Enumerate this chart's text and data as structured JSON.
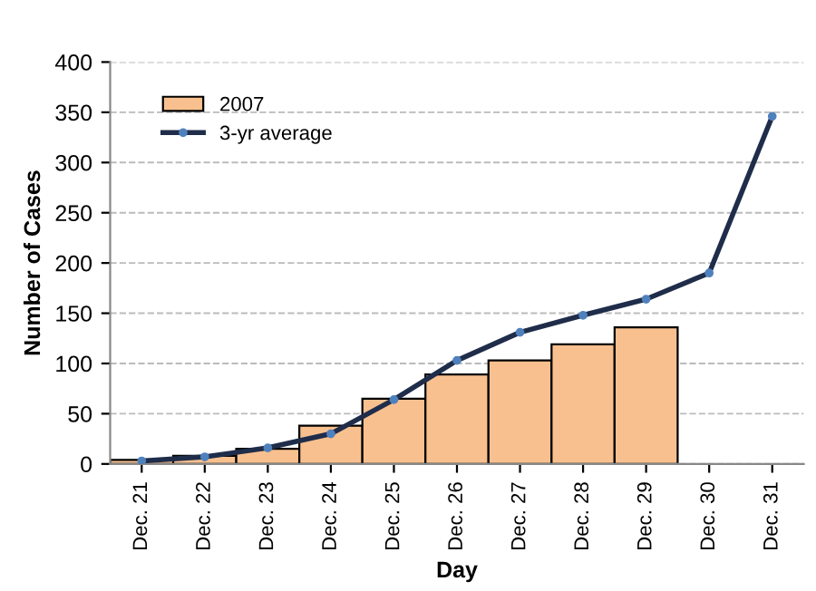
{
  "chart_data": {
    "type": "bar",
    "xlabel": "Day",
    "ylabel": "Number of Cases",
    "categories": [
      "Dec. 21",
      "Dec. 22",
      "Dec. 23",
      "Dec. 24",
      "Dec. 25",
      "Dec. 26",
      "Dec. 27",
      "Dec. 28",
      "Dec. 29",
      "Dec. 30",
      "Dec. 31"
    ],
    "series": [
      {
        "name": "2007",
        "color": "#f9c08f",
        "values": [
          4,
          8,
          15,
          38,
          65,
          89,
          103,
          119,
          136,
          null,
          null
        ]
      },
      {
        "name": "3-yr average",
        "type": "line",
        "color": "#1f2d4a",
        "marker": "circle",
        "values": [
          3,
          7,
          16,
          30,
          64,
          103,
          131,
          148,
          164,
          190,
          346
        ]
      }
    ],
    "ylim": [
      0,
      400
    ],
    "yticks": [
      0,
      50,
      100,
      150,
      200,
      250,
      300,
      350,
      400
    ],
    "grid": "y",
    "legend": "top left"
  }
}
